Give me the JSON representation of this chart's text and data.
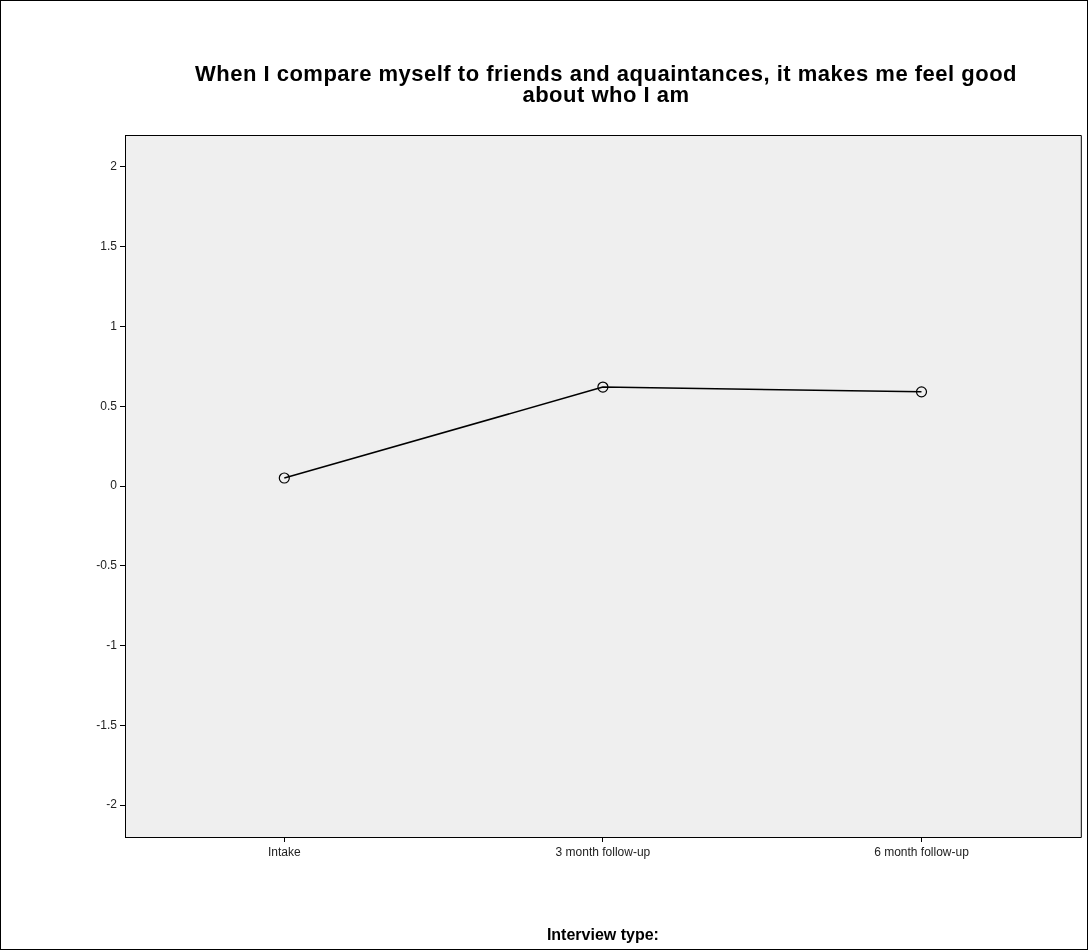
{
  "chart_data": {
    "type": "line",
    "title": "When I compare myself to friends and aquaintances, it makes me feel good about who I am",
    "xlabel": "Interview type:",
    "categories": [
      "Intake",
      "3 month follow-up",
      "6 month follow-up"
    ],
    "values": [
      0.05,
      0.62,
      0.59
    ],
    "color": "#000000",
    "ylim": [
      -2.2,
      2.2
    ],
    "yticks": [
      -2,
      -1.5,
      -1,
      -0.5,
      0,
      0.5,
      1,
      1.5,
      2
    ],
    "marker": "circle",
    "grid": false
  }
}
